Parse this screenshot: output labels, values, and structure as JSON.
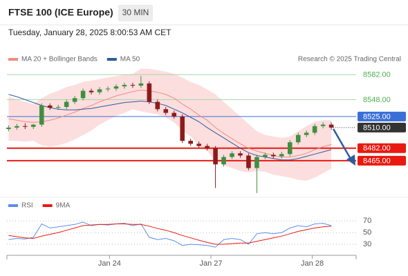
{
  "header": {
    "title": "FTSE 100 (ICE Europe)",
    "interval": "30 MIN",
    "timestamp": "Tuesday, January 28, 2025 8:00:53 AM CET"
  },
  "chart_data": [
    {
      "type": "candlestick",
      "source": "Research © 2025 Trading Central",
      "open": [
        8508,
        8510,
        8512,
        8511,
        8514,
        8540,
        8537,
        8538,
        8545,
        8550,
        8560,
        8558,
        8562,
        8563,
        8566,
        8568,
        8567,
        8570,
        8545,
        8535,
        8530,
        8525,
        8492,
        8488,
        8485,
        8482,
        8460,
        8470,
        8475,
        8472,
        8455,
        8470,
        8473,
        8471,
        8474,
        8490,
        8500,
        8503,
        8512,
        8514
      ],
      "high": [
        8513,
        8515,
        8516,
        8515,
        8543,
        8543,
        8541,
        8548,
        8553,
        8563,
        8563,
        8565,
        8566,
        8569,
        8571,
        8571,
        8580,
        8573,
        8548,
        8538,
        8533,
        8528,
        8495,
        8491,
        8488,
        8485,
        8473,
        8478,
        8478,
        8475,
        8473,
        8476,
        8476,
        8477,
        8493,
        8503,
        8506,
        8515,
        8517,
        8517
      ],
      "low": [
        8505,
        8507,
        8508,
        8508,
        8511,
        8534,
        8534,
        8535,
        8542,
        8547,
        8555,
        8555,
        8559,
        8560,
        8563,
        8564,
        8564,
        8542,
        8532,
        8527,
        8522,
        8489,
        8485,
        8482,
        8479,
        8428,
        8457,
        8467,
        8469,
        8452,
        8421,
        8467,
        8468,
        8468,
        8471,
        8487,
        8497,
        8500,
        8509,
        8507
      ],
      "close": [
        8510,
        8512,
        8511,
        8514,
        8540,
        8537,
        8538,
        8545,
        8550,
        8560,
        8558,
        8562,
        8563,
        8566,
        8568,
        8567,
        8570,
        8545,
        8535,
        8530,
        8525,
        8492,
        8488,
        8485,
        8482,
        8460,
        8470,
        8475,
        8472,
        8455,
        8470,
        8473,
        8471,
        8474,
        8490,
        8500,
        8503,
        8512,
        8514,
        8510
      ],
      "up_color": "#3f8f3f",
      "down_color": "#8e1b1b",
      "series": [
        {
          "name": "MA 20 + Bollinger Bands",
          "color": "#f28b82",
          "values": [
            8522,
            8520,
            8518,
            8517,
            8518,
            8520,
            8523,
            8527,
            8531,
            8536,
            8540,
            8545,
            8549,
            8553,
            8556,
            8559,
            8561,
            8560,
            8558,
            8555,
            8550,
            8542,
            8535,
            8527,
            8520,
            8510,
            8502,
            8495,
            8488,
            8482,
            8478,
            8475,
            8472,
            8470,
            8470,
            8472,
            8475,
            8480,
            8484,
            8487
          ],
          "upper": [
            8552,
            8548,
            8545,
            8542,
            8550,
            8556,
            8560,
            8565,
            8568,
            8572,
            8574,
            8576,
            8578,
            8580,
            8582,
            8583,
            8590,
            8590,
            8588,
            8586,
            8583,
            8578,
            8572,
            8568,
            8562,
            8555,
            8545,
            8535,
            8525,
            8515,
            8505,
            8500,
            8498,
            8496,
            8498,
            8505,
            8512,
            8518,
            8520,
            8520
          ],
          "lower": [
            8492,
            8492,
            8491,
            8492,
            8486,
            8484,
            8486,
            8489,
            8494,
            8500,
            8506,
            8514,
            8520,
            8526,
            8530,
            8535,
            8532,
            8530,
            8528,
            8524,
            8517,
            8506,
            8498,
            8486,
            8478,
            8465,
            8459,
            8455,
            8451,
            8449,
            8451,
            8450,
            8446,
            8444,
            8442,
            8439,
            8438,
            8442,
            8448,
            8454
          ],
          "band_color": "#fbd3d3"
        },
        {
          "name": "MA 50",
          "color": "#2f5a9e",
          "values": [
            8555,
            8552,
            8548,
            8544,
            8540,
            8537,
            8535,
            8534,
            8534,
            8535,
            8536,
            8538,
            8540,
            8542,
            8544,
            8545,
            8546,
            8545,
            8543,
            8540,
            8535,
            8530,
            8524,
            8518,
            8510,
            8503,
            8496,
            8489,
            8482,
            8476,
            8472,
            8470,
            8468,
            8466,
            8466,
            8468,
            8471,
            8474,
            8477,
            8480
          ]
        }
      ],
      "levels": [
        {
          "value": 8582,
          "label": "8582.00",
          "color": "#a5d6a7",
          "text_color": "#4caf50",
          "style": "line",
          "box": false
        },
        {
          "value": 8548,
          "label": "8548.00",
          "color": "#a5d6a7",
          "text_color": "#4caf50",
          "style": "line",
          "box": false
        },
        {
          "value": 8525,
          "label": "8525.00",
          "color": "#3b6fd8",
          "text_color": "#ffffff",
          "style": "line",
          "box": true
        },
        {
          "value": 8510,
          "label": "8510.00",
          "color": "#333333",
          "text_color": "#ffffff",
          "style": "dotted",
          "box": true
        },
        {
          "value": 8482,
          "label": "8482.00",
          "color": "#e8190f",
          "text_color": "#ffffff",
          "style": "thick",
          "box": true
        },
        {
          "value": 8465,
          "label": "8465.00",
          "color": "#e8190f",
          "text_color": "#ffffff",
          "style": "thick",
          "box": true
        }
      ],
      "xlim": [
        -0.2,
        42
      ],
      "ylim": [
        8418,
        8599
      ]
    },
    {
      "type": "line",
      "series": [
        {
          "name": "RSI",
          "color": "#5b8def",
          "values": [
            38,
            40,
            39,
            42,
            65,
            58,
            60,
            62,
            64,
            68,
            62,
            64,
            63,
            65,
            66,
            62,
            65,
            42,
            38,
            40,
            36,
            28,
            30,
            29,
            28,
            25,
            38,
            40,
            38,
            30,
            48,
            50,
            48,
            50,
            58,
            62,
            60,
            65,
            66,
            62
          ]
        },
        {
          "name": "9MA",
          "color": "#e8190f",
          "values": [
            45,
            43,
            41,
            40,
            44,
            47,
            50,
            54,
            58,
            62,
            63,
            64,
            64,
            65,
            65,
            64,
            64,
            61,
            57,
            54,
            50,
            45,
            41,
            37,
            33,
            30,
            30,
            31,
            32,
            32,
            35,
            38,
            41,
            44,
            48,
            52,
            55,
            58,
            60,
            61
          ]
        }
      ],
      "xlim": [
        -0.2,
        42
      ],
      "ylim": [
        11,
        94
      ],
      "yticks": [
        30,
        50,
        70
      ],
      "grid": true,
      "xticks": [
        {
          "value": 12.2,
          "label": "Jan 24"
        },
        {
          "value": 24.45,
          "label": "Jan 27"
        },
        {
          "value": 36.7,
          "label": "Jan 28"
        }
      ]
    }
  ]
}
